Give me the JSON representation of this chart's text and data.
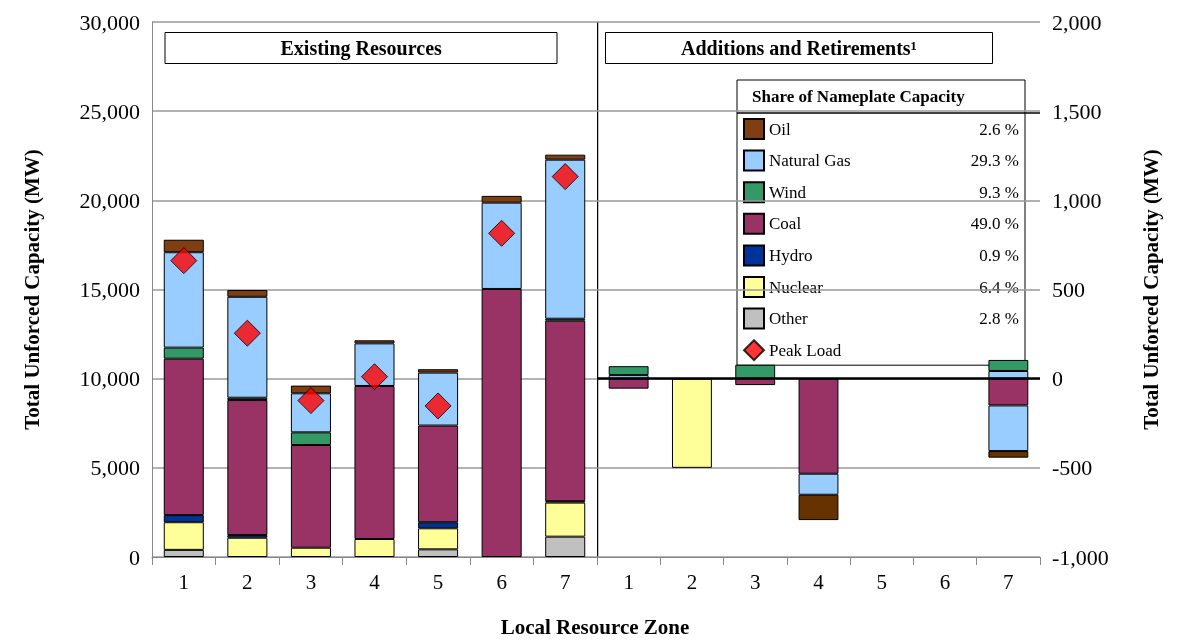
{
  "chart_data": [
    {
      "type": "bar",
      "title": "Existing Resources",
      "xlabel": "Local Resource Zone",
      "ylabel": "Total Unforced Capacity (MW)",
      "legend_title": "Share of Nameplate Capacity",
      "categories": [
        "1",
        "2",
        "3",
        "4",
        "5",
        "6",
        "7"
      ],
      "stacked": true,
      "grid": "y",
      "legend": "top right",
      "ylim": [
        0,
        30000
      ],
      "yticks": [
        0,
        {
          "value": 5000,
          "label": "5,000"
        },
        {
          "value": 10000,
          "label": "10,000"
        },
        {
          "value": 15000,
          "label": "15,000"
        },
        {
          "value": 20000,
          "label": "20,000"
        },
        {
          "value": 25000,
          "label": "25,000"
        },
        {
          "value": 30000,
          "label": "30,000"
        }
      ],
      "annotations": [
        "2.6 %",
        "29.3 %",
        "9.3 %",
        "49.0 %",
        "0.9 %",
        "6.4 %",
        "2.8 %"
      ],
      "series": [
        {
          "name": "Other",
          "color": "#c0c0c0",
          "values": [
            400,
            null,
            null,
            null,
            430,
            null,
            1140
          ]
        },
        {
          "name": "Nuclear",
          "color": "#ffff99",
          "values": [
            1550,
            1080,
            520,
            1010,
            1180,
            null,
            1910
          ]
        },
        {
          "name": "Hydro",
          "color": "#003399",
          "values": [
            400,
            150,
            null,
            null,
            340,
            null,
            80
          ]
        },
        {
          "name": "Coal",
          "color": "#993366",
          "values": [
            8770,
            7570,
            5760,
            8580,
            5420,
            15030,
            10120
          ]
        },
        {
          "name": "Wind",
          "color": "#339966",
          "values": [
            620,
            130,
            710,
            null,
            null,
            null,
            110
          ]
        },
        {
          "name": "Natural Gas",
          "color": "#99ccff",
          "values": [
            5350,
            5660,
            2190,
            2390,
            2970,
            4840,
            8920
          ]
        },
        {
          "name": "Oil",
          "color": "#7f3f12",
          "values": [
            700,
            380,
            430,
            170,
            190,
            380,
            280
          ]
        },
        {
          "name": "Peak Load",
          "type": "scatter",
          "marker": "diamond",
          "color": "#ff0000",
          "x": [
            "1",
            "2",
            "3",
            "4",
            "5",
            "6",
            "7"
          ],
          "values": [
            16620,
            12550,
            8770,
            10110,
            8470,
            18150,
            21330
          ]
        }
      ]
    },
    {
      "type": "bar",
      "title": "Additions and Retirements¹",
      "ylabel": "Total Unforced Capacity (MW)",
      "categories": [
        "1",
        "2",
        "3",
        "4",
        "5",
        "6",
        "7"
      ],
      "stacked": true,
      "grid": "y",
      "ylim": [
        -1000,
        2000
      ],
      "yticks": [
        {
          "value": -1000,
          "label": "-1,000"
        },
        -500,
        0,
        500,
        {
          "value": 1000,
          "label": "1,000"
        },
        {
          "value": 1500,
          "label": "1,500"
        },
        {
          "value": 2000,
          "label": "2,000"
        }
      ],
      "ref_lines": [
        {
          "axis": "y",
          "value": 0,
          "color": "#000000"
        }
      ],
      "series": [
        {
          "color": "#ffff99",
          "values": [
            null,
            -500,
            null,
            null,
            null,
            null,
            null
          ]
        },
        {
          "color": "#993366",
          "values": [
            -56,
            null,
            -36,
            -533,
            null,
            null,
            -150
          ]
        },
        {
          "color": "#99ccff",
          "values": [
            20,
            null,
            null,
            -118,
            null,
            null,
            43
          ]
        },
        {
          "color": "#99ccff",
          "values": [
            null,
            null,
            null,
            null,
            null,
            null,
            -256
          ]
        },
        {
          "color": "#339966",
          "values": [
            50,
            null,
            78,
            null,
            null,
            null,
            62
          ]
        },
        {
          "color": "#663300",
          "values": [
            null,
            null,
            null,
            -142,
            null,
            null,
            -37
          ]
        }
      ]
    }
  ]
}
